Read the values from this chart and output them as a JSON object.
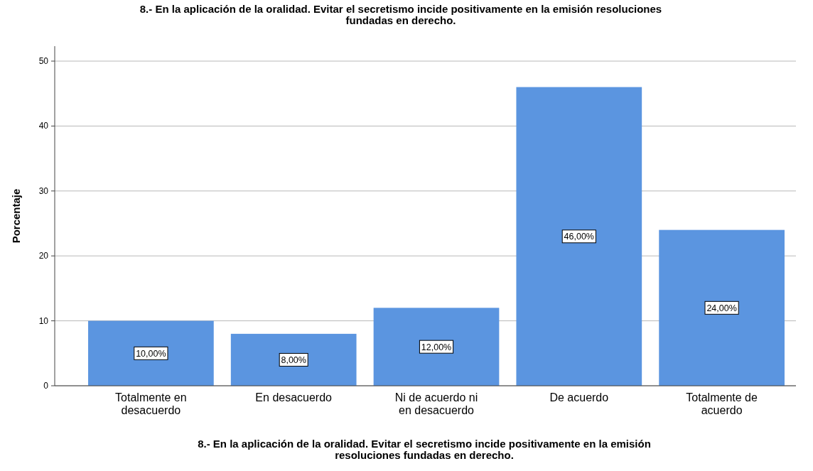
{
  "chart_data": {
    "type": "bar",
    "title": "8.- En la aplicación de la oralidad. Evitar el secretismo incide positivamente en la emisión resoluciones fundadas en derecho.",
    "xlabel": "8.- En la aplicación de la oralidad. Evitar el secretismo incide positivamente en la emisión resoluciones fundadas en derecho.",
    "ylabel": "Porcentaje",
    "categories": [
      "Totalmente en desacuerdo",
      "En desacuerdo",
      "Ni de acuerdo ni en desacuerdo",
      "De acuerdo",
      "Totalmente de acuerdo"
    ],
    "values": [
      10,
      8,
      12,
      46,
      24
    ],
    "value_labels": [
      "10,00%",
      "8,00%",
      "12,00%",
      "46,00%",
      "24,00%"
    ],
    "color": "#5b95e0",
    "ylim": [
      0,
      52.3
    ],
    "yticks": [
      0,
      10,
      20,
      30,
      40,
      50
    ],
    "grid": "y"
  }
}
